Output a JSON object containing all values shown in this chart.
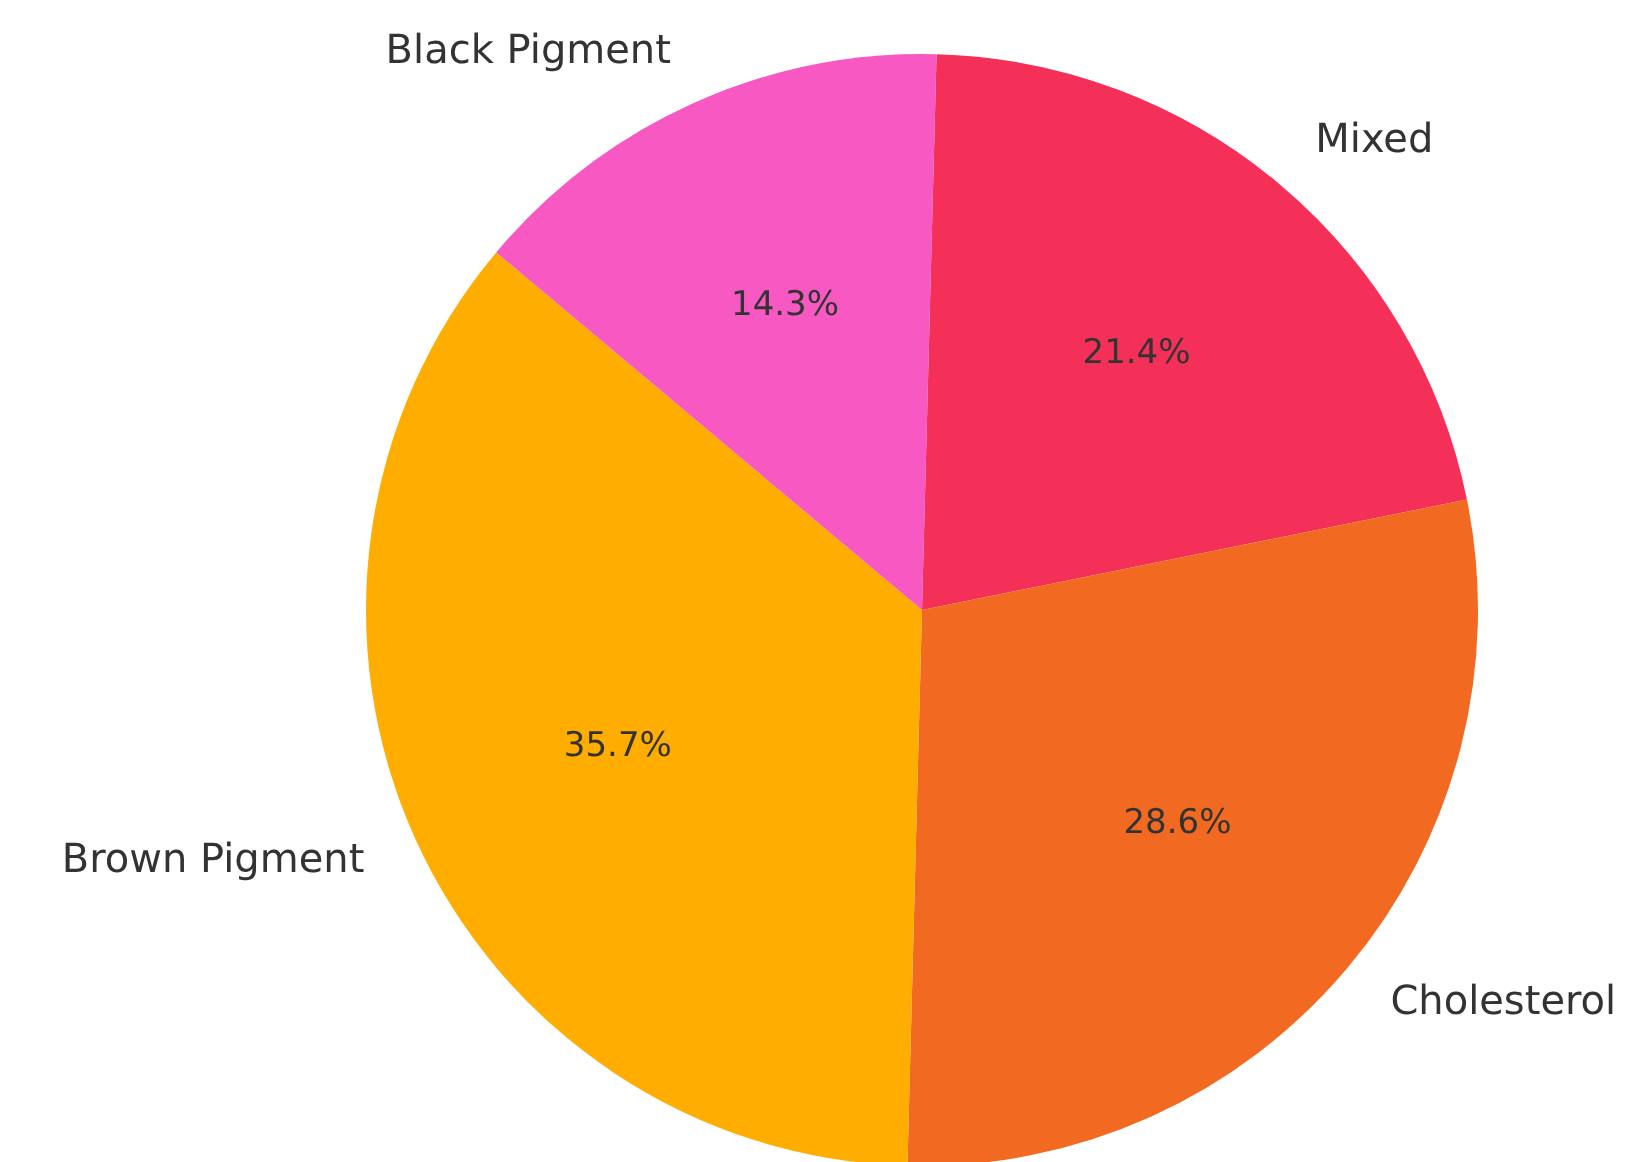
{
  "chart_data": {
    "type": "pie",
    "categories": [
      "Mixed",
      "Cholesterol",
      "Brown Pigment",
      "Black Pigment"
    ],
    "values": [
      21.4,
      28.6,
      35.7,
      14.3
    ],
    "colors": [
      "#f43058",
      "#f26a21",
      "#ffad00",
      "#f758c2"
    ],
    "value_labels": [
      "21.4%",
      "28.6%",
      "35.7%",
      "14.3%"
    ],
    "legend": false
  }
}
